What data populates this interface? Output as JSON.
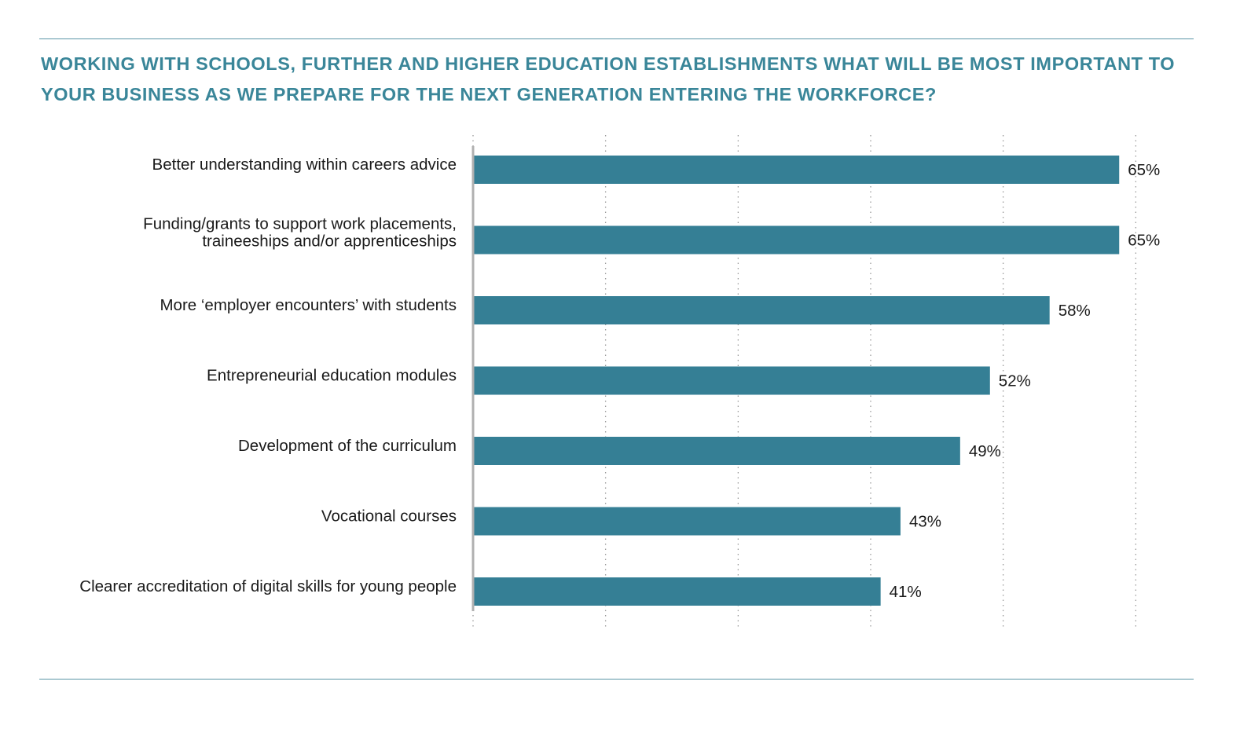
{
  "title": " WORKING WITH SCHOOLS, FURTHER AND HIGHER EDUCATION ESTABLISHMENTS WHAT WILL BE MOST IMPORTANT TO YOUR BUSINESS AS WE PREPARE FOR THE NEXT GENERATION ENTERING THE WORKFORCE?",
  "colors": {
    "bar": "#357f95",
    "title": "#3a8699",
    "rule": "#5a95a6",
    "grid": "#9a9a9a",
    "axis": "#b0b0b0"
  },
  "chart_data": {
    "type": "bar",
    "orientation": "horizontal",
    "title": " WORKING WITH SCHOOLS, FURTHER AND HIGHER EDUCATION ESTABLISHMENTS WHAT WILL BE MOST IMPORTANT TO YOUR BUSINESS AS WE PREPARE FOR THE NEXT GENERATION ENTERING THE WORKFORCE?",
    "categories": [
      [
        "Better understanding within careers advice"
      ],
      [
        "Funding/grants to support work placements,",
        "traineeships and/or apprenticeships"
      ],
      [
        "More ‘employer encounters’ with students"
      ],
      [
        "Entrepreneurial education modules"
      ],
      [
        "Development of the curriculum"
      ],
      [
        "Vocational courses"
      ],
      [
        "Clearer accreditation of digital skills for young people"
      ]
    ],
    "values": [
      65,
      65,
      58,
      52,
      49,
      43,
      41
    ],
    "value_labels": [
      "65%",
      "65%",
      "58%",
      "52%",
      "49%",
      "43%",
      "41%"
    ],
    "xlim": [
      0,
      66.7
    ],
    "grid": true,
    "grid_values": [
      0,
      13.33,
      26.67,
      40,
      53.33,
      66.67
    ],
    "xlabel": "",
    "ylabel": ""
  }
}
